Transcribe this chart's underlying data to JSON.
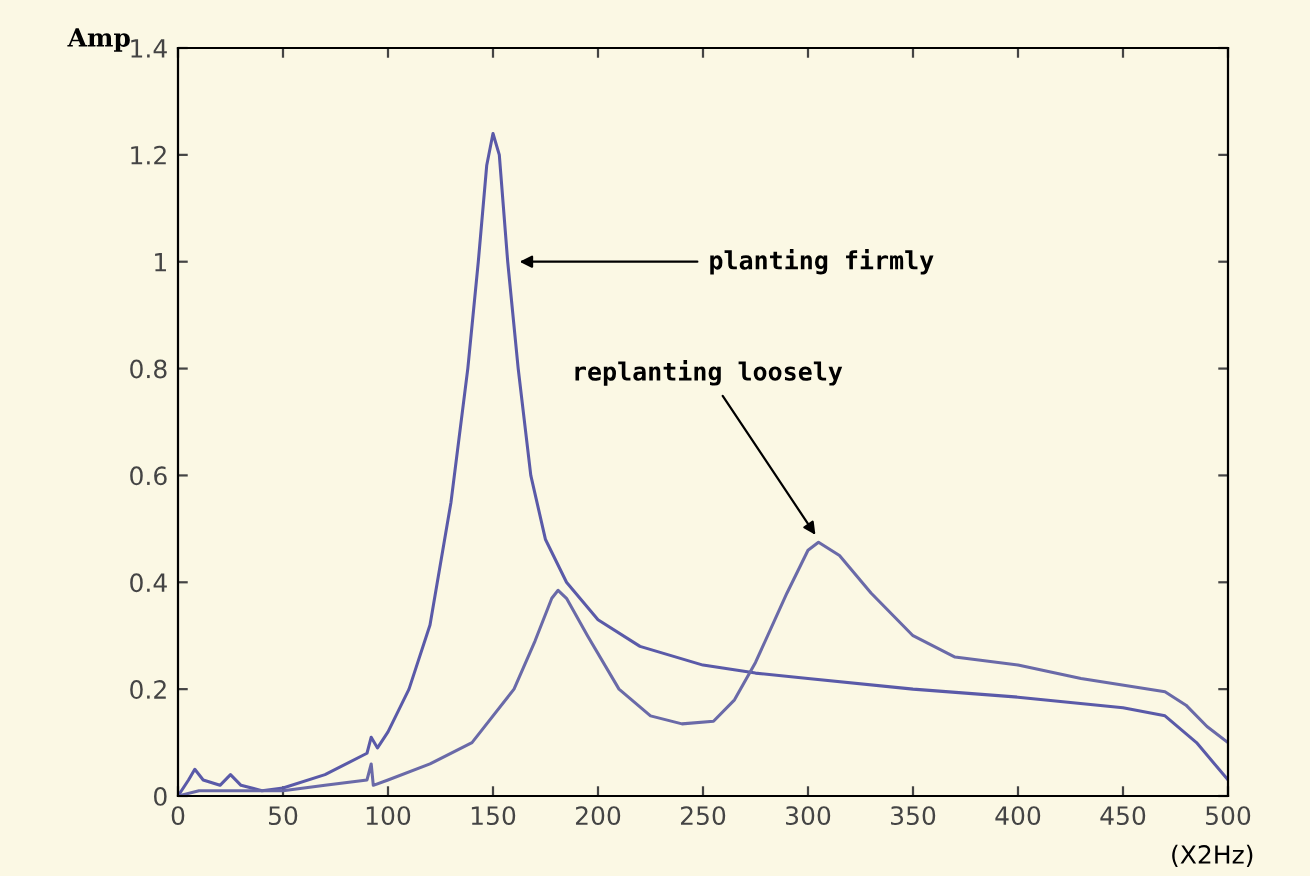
{
  "chart_data": {
    "type": "line",
    "xlabel": "(X2Hz)",
    "ylabel": "Amp",
    "xlim": [
      0,
      500
    ],
    "xticks": [
      0,
      50,
      100,
      150,
      200,
      250,
      300,
      350,
      400,
      450,
      500
    ],
    "ylim": [
      0,
      1.4
    ],
    "yticks": [
      0,
      0.2,
      0.4,
      0.6,
      0.8,
      1,
      1.2,
      1.4
    ],
    "grid": false,
    "series": [
      {
        "color": "#5a5aa8",
        "x": [
          0,
          5,
          8,
          12,
          20,
          25,
          30,
          40,
          50,
          70,
          90,
          92,
          95,
          100,
          110,
          120,
          130,
          138,
          143,
          147,
          150,
          153,
          157,
          162,
          168,
          175,
          185,
          200,
          220,
          250,
          275,
          300,
          350,
          400,
          450,
          470,
          485,
          500
        ],
        "values": [
          0,
          0.03,
          0.05,
          0.03,
          0.02,
          0.04,
          0.02,
          0.01,
          0.015,
          0.04,
          0.08,
          0.11,
          0.09,
          0.12,
          0.2,
          0.32,
          0.55,
          0.8,
          1.0,
          1.18,
          1.24,
          1.2,
          1.0,
          0.8,
          0.6,
          0.48,
          0.4,
          0.33,
          0.28,
          0.245,
          0.23,
          0.22,
          0.2,
          0.185,
          0.165,
          0.15,
          0.1,
          0.03
        ]
      },
      {
        "color": "#6a6aa8",
        "x": [
          0,
          10,
          30,
          50,
          70,
          90,
          92,
          93,
          100,
          120,
          140,
          160,
          170,
          178,
          181,
          185,
          195,
          210,
          225,
          240,
          255,
          265,
          275,
          290,
          300,
          305,
          315,
          330,
          350,
          370,
          400,
          430,
          470,
          480,
          490,
          500
        ],
        "values": [
          0,
          0.01,
          0.01,
          0.01,
          0.02,
          0.03,
          0.06,
          0.02,
          0.03,
          0.06,
          0.1,
          0.2,
          0.29,
          0.37,
          0.385,
          0.37,
          0.3,
          0.2,
          0.15,
          0.135,
          0.14,
          0.18,
          0.25,
          0.38,
          0.46,
          0.475,
          0.45,
          0.38,
          0.3,
          0.26,
          0.245,
          0.22,
          0.195,
          0.17,
          0.13,
          0.1
        ]
      }
    ],
    "annotations": [
      {
        "text": "planting firmly",
        "x": 160,
        "y": 1.0
      },
      {
        "text": "replanting loosely",
        "x": 305,
        "y": 0.48
      }
    ]
  }
}
